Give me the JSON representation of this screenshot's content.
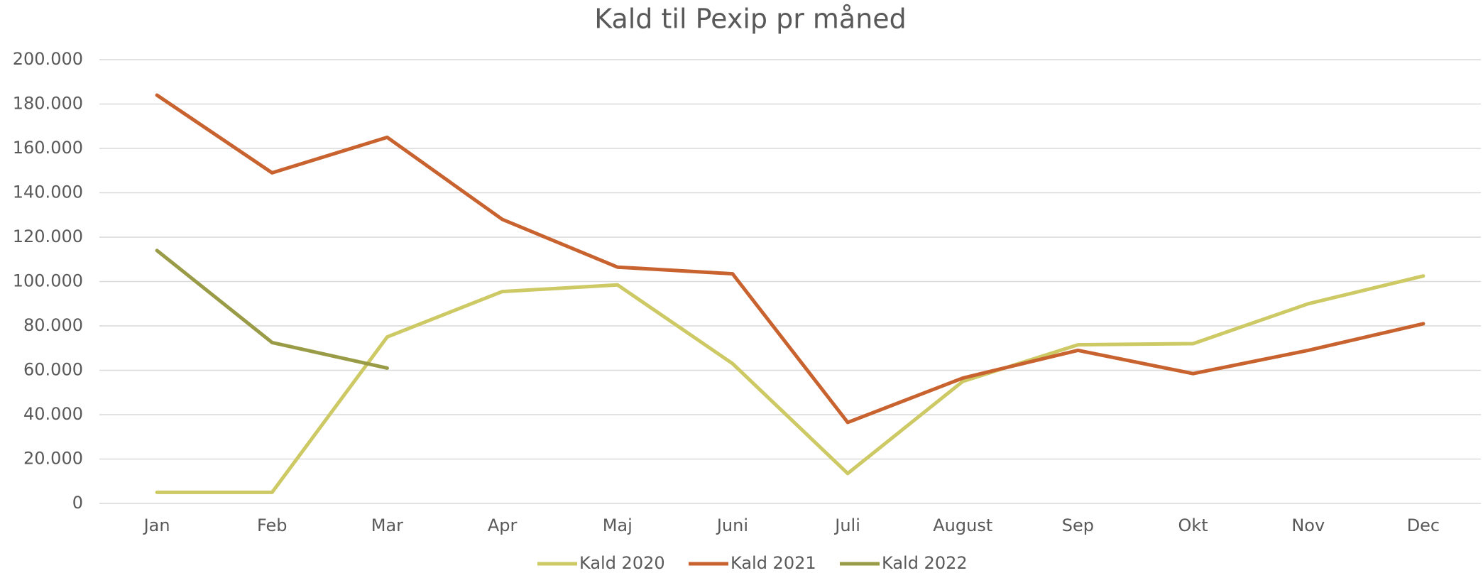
{
  "chart_data": {
    "type": "line",
    "title": "Kald til Pexip pr måned",
    "categories": [
      "Jan",
      "Feb",
      "Mar",
      "Apr",
      "Maj",
      "Juni",
      "Juli",
      "August",
      "Sep",
      "Okt",
      "Nov",
      "Dec"
    ],
    "series": [
      {
        "name": "Kald 2020",
        "color": "#cdc965",
        "values": [
          5000,
          5000,
          75000,
          95500,
          98500,
          63000,
          13500,
          55000,
          71500,
          72000,
          90000,
          102500
        ]
      },
      {
        "name": "Kald 2021",
        "color": "#c8622f",
        "values": [
          184000,
          149000,
          165000,
          128000,
          106500,
          103500,
          36500,
          56500,
          69000,
          58500,
          69000,
          81000
        ]
      },
      {
        "name": "Kald 2022",
        "color": "#999b47",
        "values": [
          114000,
          72500,
          61000,
          null,
          null,
          null,
          null,
          null,
          null,
          null,
          null,
          null
        ]
      }
    ],
    "ylim": [
      0,
      200000
    ],
    "yticks": [
      0,
      {
        "value": 20000,
        "label": "20.000"
      },
      {
        "value": 40000,
        "label": "40.000"
      },
      {
        "value": 60000,
        "label": "60.000"
      },
      {
        "value": 80000,
        "label": "80.000"
      },
      {
        "value": 100000,
        "label": "100.000"
      },
      {
        "value": 120000,
        "label": "120.000"
      },
      {
        "value": 140000,
        "label": "140.000"
      },
      {
        "value": 160000,
        "label": "160.000"
      },
      {
        "value": 180000,
        "label": "180.000"
      },
      {
        "value": 200000,
        "label": "200.000"
      }
    ],
    "grid": true,
    "legend": "bottom"
  }
}
